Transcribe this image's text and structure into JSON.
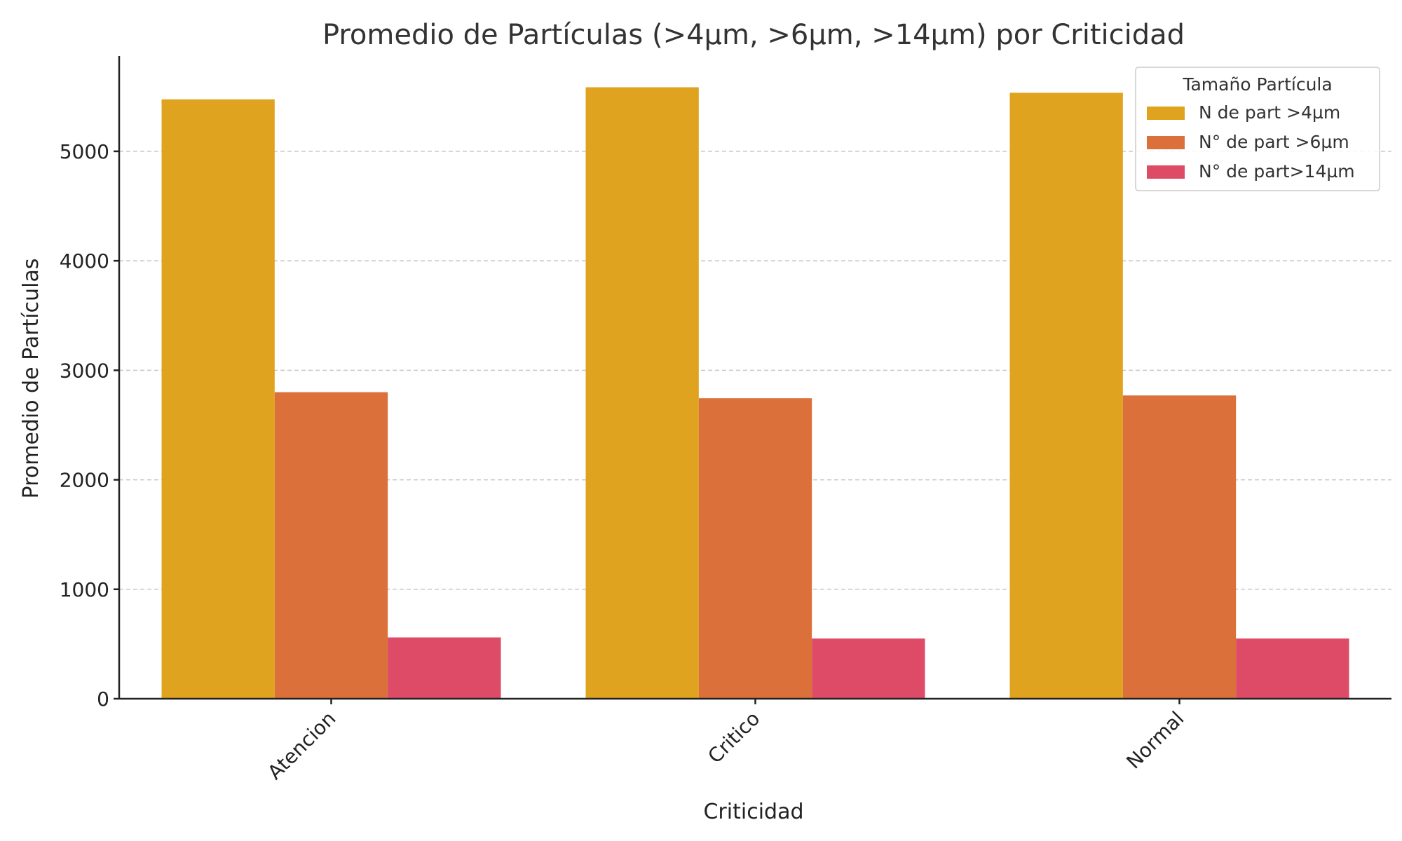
{
  "chart_data": {
    "type": "bar",
    "title": "Promedio de Partículas (>4µm, >6µm, >14µm) por Criticidad",
    "xlabel": "Criticidad",
    "ylabel": "Promedio de Partículas",
    "categories": [
      "Atencion",
      "Critico",
      "Normal"
    ],
    "series": [
      {
        "name": "N de part >4µm",
        "color": "#E0A31F",
        "values": [
          5475,
          5585,
          5535
        ]
      },
      {
        "name": "N° de part >6µm",
        "color": "#DB703A",
        "values": [
          2800,
          2745,
          2770
        ]
      },
      {
        "name": "N° de part>14µm",
        "color": "#DE4B66",
        "values": [
          560,
          550,
          550
        ]
      }
    ],
    "ylim": [
      0,
      5870
    ],
    "yticks": [
      0,
      1000,
      2000,
      3000,
      4000,
      5000
    ],
    "grid": "y-dashed",
    "legend": {
      "title": "Tamaño Partícula",
      "placement": "top-right"
    }
  }
}
